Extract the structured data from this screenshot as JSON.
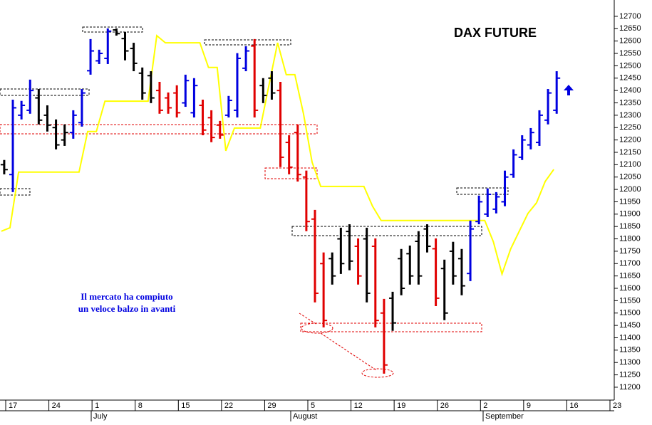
{
  "chart_data": {
    "type": "ohlc",
    "title": "DAX FUTURE",
    "annotation": [
      "Il mercato ha compiuto",
      "un veloce balzo in avanti"
    ],
    "months": [
      "July",
      "August",
      "September"
    ],
    "categories": [
      null,
      "17",
      null,
      null,
      null,
      null,
      "24",
      null,
      null,
      null,
      null,
      "1",
      null,
      null,
      null,
      null,
      "8",
      null,
      null,
      null,
      null,
      "15",
      null,
      null,
      null,
      null,
      "22",
      null,
      null,
      null,
      null,
      "29",
      null,
      null,
      null,
      null,
      "5",
      null,
      null,
      null,
      null,
      "12",
      null,
      null,
      null,
      null,
      "19",
      null,
      null,
      null,
      null,
      "26",
      null,
      null,
      null,
      null,
      "2",
      null,
      null,
      null,
      null,
      "9",
      null,
      null,
      null,
      null,
      "16",
      null,
      null,
      null,
      null,
      "23"
    ],
    "ohlc": {
      "open": [
        12100,
        12060,
        12300,
        12320,
        12370,
        12300,
        12250,
        12200,
        12230,
        12270,
        12480,
        12520,
        12530,
        12645,
        12610,
        12570,
        12470,
        12460,
        12400,
        12370,
        12390,
        12350,
        12310,
        12340,
        12290,
        12260,
        12300,
        12320,
        12490,
        12580,
        12420,
        12450,
        12400,
        12190,
        12230,
        12050,
        11880,
        11700,
        11720,
        11800,
        11830,
        11770,
        11800,
        11770,
        11500,
        11560,
        11720,
        11740,
        11790,
        11840,
        11760,
        11680,
        11750,
        11720,
        11660,
        11870,
        11900,
        11920,
        11950,
        12060,
        12130,
        12180,
        12190,
        12280,
        12320,
        null,
        null,
        null,
        null,
        null,
        null,
        null
      ],
      "high": [
        12119,
        12363,
        12358,
        12444,
        12406,
        12340,
        12283,
        12263,
        12320,
        12406,
        12608,
        12565,
        12651,
        12651,
        12637,
        12593,
        12493,
        12478,
        12435,
        12392,
        12421,
        12464,
        12450,
        12363,
        12320,
        12277,
        12378,
        12551,
        12579,
        12608,
        12450,
        12478,
        12435,
        12219,
        12263,
        12076,
        11917,
        11745,
        11745,
        11845,
        11859,
        11802,
        11845,
        11802,
        11557,
        11586,
        11759,
        11773,
        11831,
        11859,
        11802,
        11716,
        11788,
        11759,
        11874,
        11975,
        12004,
        11989,
        12076,
        12162,
        12219,
        12248,
        12320,
        12406,
        12478,
        null,
        null,
        null,
        null,
        null,
        null,
        null
      ],
      "low": [
        12061,
        11989,
        12283,
        12306,
        12263,
        12234,
        12162,
        12176,
        12205,
        12254,
        12464,
        12507,
        12507,
        12622,
        12522,
        12478,
        12363,
        12349,
        12306,
        12306,
        12291,
        12334,
        12291,
        12219,
        12191,
        12205,
        12291,
        12291,
        12478,
        12291,
        12349,
        12363,
        12090,
        12061,
        12032,
        11831,
        11543,
        11442,
        11615,
        11658,
        11673,
        11615,
        11543,
        11442,
        11255,
        11428,
        11572,
        11615,
        11615,
        11745,
        11528,
        11471,
        11615,
        11572,
        11629,
        11859,
        11888,
        11903,
        11932,
        12047,
        12119,
        12162,
        12176,
        12263,
        12306,
        null,
        null,
        null,
        null,
        null,
        null,
        null
      ],
      "close": [
        12080,
        12330,
        12340,
        12400,
        12280,
        12260,
        12180,
        12230,
        12300,
        12390,
        12560,
        12550,
        12640,
        12630,
        12560,
        12510,
        12390,
        12370,
        12320,
        12330,
        12310,
        12440,
        12420,
        12240,
        12210,
        12220,
        12360,
        12530,
        12560,
        12320,
        12380,
        12390,
        12130,
        12090,
        12060,
        11870,
        11580,
        11470,
        11650,
        11700,
        11710,
        11650,
        11580,
        11470,
        11290,
        11460,
        11600,
        11650,
        11650,
        11770,
        11560,
        11500,
        11650,
        11610,
        11840,
        11950,
        11980,
        11970,
        12050,
        12140,
        12200,
        12230,
        12300,
        12390,
        12450,
        null,
        null,
        null,
        null,
        null,
        null,
        null
      ],
      "colors": [
        "#000000",
        "#0000e0",
        "#0000e0",
        "#0000e0",
        "#000000",
        "#000000",
        "#000000",
        "#000000",
        "#0000e0",
        "#0000e0",
        "#0000e0",
        "#0000e0",
        "#0000e0",
        "#000000",
        "#000000",
        "#000000",
        "#000000",
        "#000000",
        "#e00000",
        "#e00000",
        "#e00000",
        "#0000e0",
        "#0000e0",
        "#e00000",
        "#e00000",
        "#e00000",
        "#0000e0",
        "#0000e0",
        "#0000e0",
        "#e00000",
        "#000000",
        "#000000",
        "#e00000",
        "#e00000",
        "#e00000",
        "#e00000",
        "#e00000",
        "#e00000",
        "#000000",
        "#000000",
        "#000000",
        "#e00000",
        "#000000",
        "#e00000",
        "#e00000",
        "#000000",
        "#000000",
        "#000000",
        "#000000",
        "#000000",
        "#e00000",
        "#000000",
        "#000000",
        "#000000",
        "#0000e0",
        "#0000e0",
        "#0000e0",
        "#0000e0",
        "#0000e0",
        "#0000e0",
        "#0000e0",
        "#0000e0",
        "#0000e0",
        "#0000e0",
        "#0000e0",
        null,
        null,
        null,
        null,
        null,
        null,
        null
      ]
    },
    "line": {
      "color": "#ffff00",
      "values": [
        11831,
        11845,
        12070,
        12070,
        12070,
        12070,
        12070,
        12070,
        12070,
        12070,
        12234,
        12234,
        12357,
        12357,
        12357,
        12357,
        12357,
        12357,
        12622,
        12593,
        12593,
        12593,
        12593,
        12593,
        12493,
        12493,
        12156,
        12248,
        12248,
        12248,
        12248,
        12421,
        12593,
        12464,
        12464,
        12306,
        12110,
        12012,
        12012,
        12012,
        12012,
        12012,
        12012,
        11932,
        11874,
        11874,
        11874,
        11874,
        11874,
        11874,
        11874,
        11874,
        11874,
        11874,
        11874,
        11874,
        11874,
        11788,
        11658,
        11759,
        11831,
        11903,
        11946,
        12032,
        12081,
        null,
        null,
        null,
        null,
        null,
        null,
        null
      ]
    },
    "ylim": [
      11148,
      12766
    ],
    "yticks": [
      11200,
      11250,
      11300,
      11350,
      11400,
      11450,
      11500,
      11550,
      11600,
      11650,
      11700,
      11750,
      11800,
      11850,
      11900,
      11950,
      12000,
      12050,
      12100,
      12150,
      12200,
      12250,
      12300,
      12350,
      12400,
      12450,
      12500,
      12550,
      12600,
      12650,
      12700
    ]
  }
}
